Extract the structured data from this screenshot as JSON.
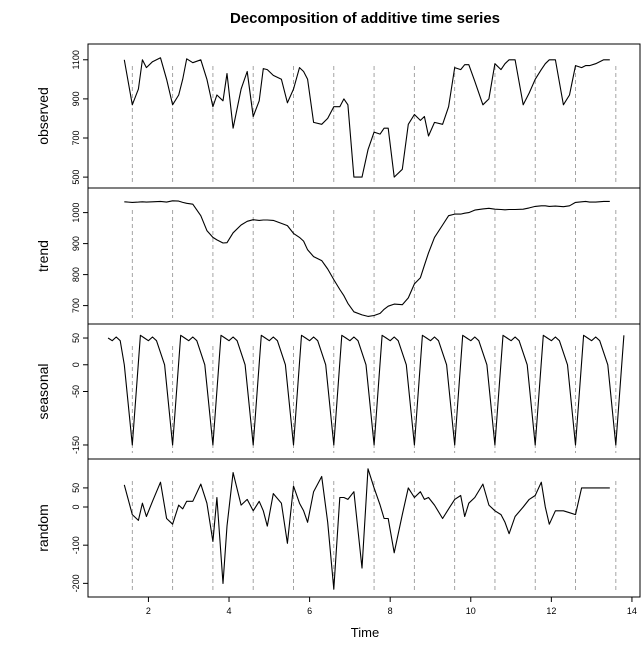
{
  "chart_data": {
    "type": "line",
    "title": "Decomposition of additive time series",
    "xlabel": "Time",
    "xlim": [
      0.5,
      14.2
    ],
    "x_ticks": [
      "2",
      "4",
      "6",
      "8",
      "10",
      "12",
      "14"
    ],
    "x_tick_values": [
      2,
      4,
      6,
      8,
      10,
      12,
      14
    ],
    "vertical_guides": [
      1.6,
      2.6,
      3.6,
      4.6,
      5.6,
      6.6,
      7.6,
      8.6,
      9.6,
      10.6,
      11.6,
      12.6,
      13.6
    ],
    "panels": [
      {
        "name": "observed",
        "ylabel": "observed",
        "ylim": [
          475,
          1150
        ],
        "y_ticks": [
          "500",
          "700",
          "900",
          "1100"
        ],
        "y_tick_values": [
          500,
          700,
          900,
          1100
        ],
        "x": [
          1.4,
          1.6,
          1.75,
          1.85,
          1.95,
          2.1,
          2.3,
          2.45,
          2.6,
          2.75,
          2.85,
          2.95,
          3.1,
          3.3,
          3.45,
          3.6,
          3.7,
          3.85,
          3.95,
          4.1,
          4.3,
          4.45,
          4.6,
          4.75,
          4.85,
          4.95,
          5.1,
          5.3,
          5.45,
          5.6,
          5.75,
          5.85,
          5.95,
          6.1,
          6.3,
          6.45,
          6.6,
          6.75,
          6.85,
          6.95,
          7.1,
          7.3,
          7.45,
          7.6,
          7.75,
          7.85,
          7.95,
          8.1,
          8.3,
          8.45,
          8.6,
          8.75,
          8.85,
          8.95,
          9.1,
          9.3,
          9.45,
          9.6,
          9.75,
          9.85,
          9.95,
          10.1,
          10.3,
          10.45,
          10.6,
          10.75,
          10.85,
          10.95,
          11.1,
          11.3,
          11.45,
          11.6,
          11.75,
          11.85,
          11.95,
          12.1,
          12.3,
          12.45,
          12.6,
          12.75,
          12.85,
          12.95,
          13.1,
          13.3,
          13.45
        ],
        "values": [
          1100,
          870,
          950,
          1100,
          1060,
          1090,
          1110,
          1000,
          870,
          920,
          1000,
          1105,
          1085,
          1100,
          1000,
          860,
          920,
          890,
          1030,
          750,
          950,
          1040,
          810,
          890,
          1055,
          1050,
          1020,
          1000,
          880,
          950,
          1060,
          1040,
          1000,
          780,
          770,
          800,
          860,
          860,
          900,
          870,
          500,
          500,
          640,
          730,
          720,
          750,
          750,
          500,
          540,
          770,
          820,
          790,
          810,
          710,
          780,
          770,
          860,
          1060,
          1050,
          1075,
          1075,
          990,
          870,
          900,
          1080,
          1050,
          1080,
          1100,
          1100,
          870,
          930,
          1000,
          1050,
          1080,
          1100,
          1100,
          870,
          920,
          1070,
          1060,
          1070,
          1070,
          1080,
          1100,
          1100
        ]
      },
      {
        "name": "trend",
        "ylabel": "trend",
        "ylim": [
          660,
          1060
        ],
        "y_ticks": [
          "700",
          "800",
          "900",
          "1000"
        ],
        "y_tick_values": [
          700,
          800,
          900,
          1000
        ],
        "x": [
          1.4,
          1.6,
          1.75,
          1.85,
          1.95,
          2.1,
          2.3,
          2.45,
          2.6,
          2.75,
          2.85,
          2.95,
          3.1,
          3.3,
          3.45,
          3.6,
          3.7,
          3.85,
          3.95,
          4.1,
          4.3,
          4.45,
          4.6,
          4.75,
          4.85,
          4.95,
          5.1,
          5.3,
          5.45,
          5.6,
          5.75,
          5.85,
          5.95,
          6.1,
          6.3,
          6.45,
          6.6,
          6.75,
          6.85,
          6.95,
          7.1,
          7.3,
          7.45,
          7.6,
          7.75,
          7.85,
          7.95,
          8.1,
          8.3,
          8.45,
          8.6,
          8.75,
          8.85,
          8.95,
          9.1,
          9.3,
          9.45,
          9.6,
          9.75,
          9.85,
          9.95,
          10.1,
          10.3,
          10.45,
          10.6,
          10.75,
          10.85,
          10.95,
          11.1,
          11.3,
          11.45,
          11.6,
          11.75,
          11.85,
          11.95,
          12.1,
          12.3,
          12.45,
          12.6,
          12.75,
          12.85,
          12.95,
          13.1,
          13.3,
          13.45
        ],
        "values": [
          1035,
          1033,
          1034,
          1035,
          1034,
          1035,
          1036,
          1034,
          1038,
          1037,
          1033,
          1030,
          1027,
          990,
          942,
          920,
          912,
          902,
          903,
          935,
          960,
          972,
          977,
          975,
          976,
          976,
          975,
          965,
          958,
          933,
          920,
          908,
          880,
          858,
          845,
          818,
          784,
          752,
          732,
          707,
          680,
          670,
          665,
          668,
          675,
          688,
          698,
          705,
          703,
          725,
          770,
          790,
          830,
          870,
          920,
          960,
          990,
          995,
          995,
          998,
          1000,
          1008,
          1012,
          1014,
          1011,
          1010,
          1009,
          1010,
          1010,
          1011,
          1015,
          1020,
          1022,
          1022,
          1020,
          1021,
          1019,
          1022,
          1033,
          1035,
          1036,
          1034,
          1034,
          1036,
          1036
        ]
      },
      {
        "name": "seasonal",
        "ylabel": "seasonal",
        "ylim": [
          -165,
          65
        ],
        "y_ticks": [
          "-150",
          "-50",
          "0",
          "50"
        ],
        "y_tick_values": [
          -150,
          -50,
          0,
          50
        ],
        "x": [
          1.0,
          1.1,
          1.2,
          1.3,
          1.4,
          1.6,
          1.8,
          1.9,
          2.0,
          2.1,
          2.2,
          2.4,
          2.6,
          2.8,
          2.9,
          3.0,
          3.1,
          3.2,
          3.4,
          3.6,
          3.8,
          3.9,
          4.0,
          4.1,
          4.2,
          4.4,
          4.6,
          4.8,
          4.9,
          5.0,
          5.1,
          5.2,
          5.4,
          5.6,
          5.8,
          5.9,
          6.0,
          6.1,
          6.2,
          6.4,
          6.6,
          6.8,
          6.9,
          7.0,
          7.1,
          7.2,
          7.4,
          7.6,
          7.8,
          7.9,
          8.0,
          8.1,
          8.2,
          8.4,
          8.6,
          8.8,
          8.9,
          9.0,
          9.1,
          9.2,
          9.4,
          9.6,
          9.8,
          9.9,
          10.0,
          10.1,
          10.2,
          10.4,
          10.6,
          10.8,
          10.9,
          11.0,
          11.1,
          11.2,
          11.4,
          11.6,
          11.8,
          11.9,
          12.0,
          12.1,
          12.2,
          12.4,
          12.6,
          12.8,
          12.9,
          13.0,
          13.1,
          13.2,
          13.4,
          13.6,
          13.8
        ],
        "values": [
          50,
          45,
          52,
          45,
          0,
          -150,
          55,
          50,
          45,
          52,
          45,
          0,
          -150,
          55,
          50,
          45,
          52,
          45,
          0,
          -150,
          55,
          50,
          45,
          52,
          45,
          0,
          -150,
          55,
          50,
          45,
          52,
          45,
          0,
          -150,
          55,
          50,
          45,
          52,
          45,
          0,
          -150,
          55,
          50,
          45,
          52,
          45,
          0,
          -150,
          55,
          50,
          45,
          52,
          45,
          0,
          -150,
          55,
          50,
          45,
          52,
          45,
          0,
          -150,
          55,
          50,
          45,
          52,
          45,
          0,
          -150,
          55,
          50,
          45,
          52,
          45,
          0,
          -150,
          55,
          50,
          45,
          52,
          45,
          0,
          -150,
          55,
          50,
          45,
          52,
          45,
          0,
          -150,
          55
        ]
      },
      {
        "name": "random",
        "ylabel": "random",
        "ylim": [
          -220,
          110
        ],
        "y_ticks": [
          "-200",
          "-100",
          "0",
          "50"
        ],
        "y_tick_values": [
          -200,
          -100,
          0,
          50
        ],
        "x": [
          1.4,
          1.6,
          1.75,
          1.85,
          1.95,
          2.1,
          2.3,
          2.45,
          2.6,
          2.75,
          2.85,
          2.95,
          3.1,
          3.3,
          3.45,
          3.6,
          3.7,
          3.85,
          3.95,
          4.1,
          4.3,
          4.45,
          4.6,
          4.75,
          4.85,
          4.95,
          5.1,
          5.3,
          5.45,
          5.6,
          5.75,
          5.85,
          5.95,
          6.1,
          6.3,
          6.45,
          6.6,
          6.75,
          6.85,
          6.95,
          7.1,
          7.3,
          7.45,
          7.6,
          7.75,
          7.85,
          7.95,
          8.1,
          8.3,
          8.45,
          8.6,
          8.75,
          8.85,
          8.95,
          9.1,
          9.3,
          9.45,
          9.6,
          9.75,
          9.85,
          9.95,
          10.1,
          10.3,
          10.45,
          10.6,
          10.75,
          10.85,
          10.95,
          11.1,
          11.3,
          11.45,
          11.6,
          11.75,
          11.85,
          11.95,
          12.1,
          12.3,
          12.45,
          12.6,
          12.75,
          12.85,
          12.95,
          13.1,
          13.3,
          13.45
        ],
        "values": [
          58,
          -20,
          -35,
          10,
          -25,
          15,
          65,
          -30,
          -45,
          5,
          -5,
          15,
          15,
          60,
          10,
          -90,
          25,
          -200,
          -50,
          90,
          5,
          20,
          -10,
          15,
          -10,
          -50,
          35,
          10,
          -95,
          55,
          10,
          -10,
          -40,
          40,
          80,
          -40,
          -215,
          25,
          25,
          20,
          40,
          -160,
          100,
          50,
          5,
          -30,
          -30,
          -120,
          -20,
          50,
          25,
          40,
          20,
          25,
          5,
          -30,
          -5,
          20,
          30,
          -25,
          10,
          25,
          60,
          5,
          -10,
          -20,
          -40,
          -70,
          -25,
          0,
          20,
          30,
          65,
          0,
          -45,
          -10,
          -10,
          -15,
          -20,
          50,
          50,
          50,
          50,
          50,
          50
        ]
      }
    ]
  }
}
